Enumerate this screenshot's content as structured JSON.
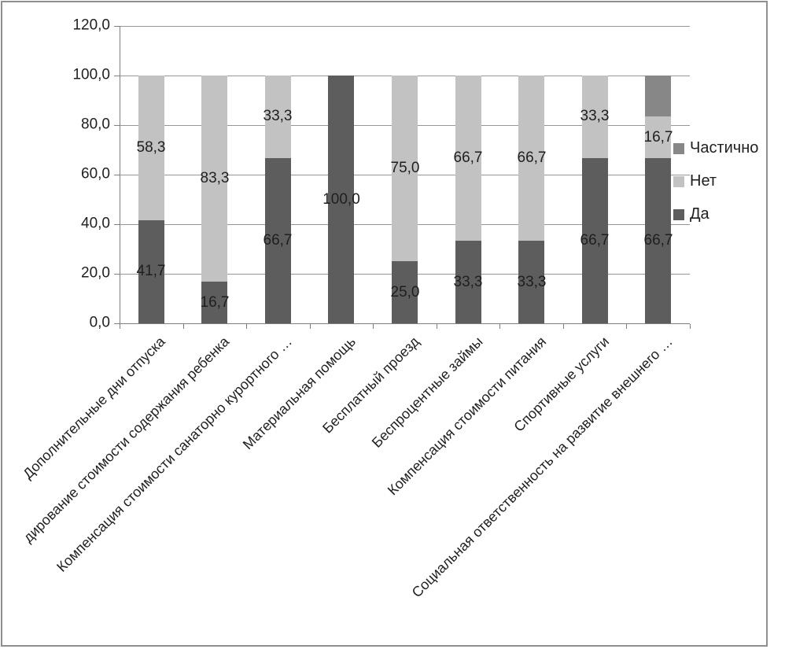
{
  "chart_data": {
    "type": "bar",
    "stacked": true,
    "title": "",
    "xlabel": "",
    "ylabel": "",
    "ylim": [
      0,
      120
    ],
    "y_tick_labels": [
      "0,0",
      "20,0",
      "40,0",
      "60,0",
      "80,0",
      "100,0",
      "120,0"
    ],
    "grid": true,
    "legend_position": "right",
    "legend_order": [
      "Частично",
      "Нет",
      "Да"
    ],
    "categories": [
      "Дополнительные дни отпуска",
      "дирование стоимости содержания ребенка",
      "Компенсация стоимости санаторно курортного …",
      "Материальная помощь",
      "Бесплатный проезд",
      "Беспроцентные займы",
      "Компенсация стоимости питания",
      "Спортивные услуги",
      "Социальная ответственность на развитие внешнего …"
    ],
    "series": [
      {
        "name": "Да",
        "color": "#5d5d5d",
        "values": [
          41.7,
          16.7,
          66.7,
          100.0,
          25.0,
          33.3,
          33.3,
          66.7,
          66.7
        ],
        "data_labels": [
          "41,7",
          "16,7",
          "66,7",
          "100,0",
          "25,0",
          "33,3",
          "33,3",
          "66,7",
          "66,7"
        ]
      },
      {
        "name": "Нет",
        "color": "#c2c2c2",
        "values": [
          58.3,
          83.3,
          33.3,
          0,
          75.0,
          66.7,
          66.7,
          33.3,
          16.7
        ],
        "data_labels": [
          "58,3",
          "83,3",
          "33,3",
          "",
          "75,0",
          "66,7",
          "66,7",
          "33,3",
          "16,7"
        ]
      },
      {
        "name": "Частично",
        "color": "#878787",
        "values": [
          0,
          0,
          0,
          0,
          0,
          0,
          0,
          0,
          16.6
        ],
        "data_labels": [
          "",
          "",
          "",
          "",
          "",
          "",
          "",
          "",
          ""
        ]
      }
    ]
  }
}
